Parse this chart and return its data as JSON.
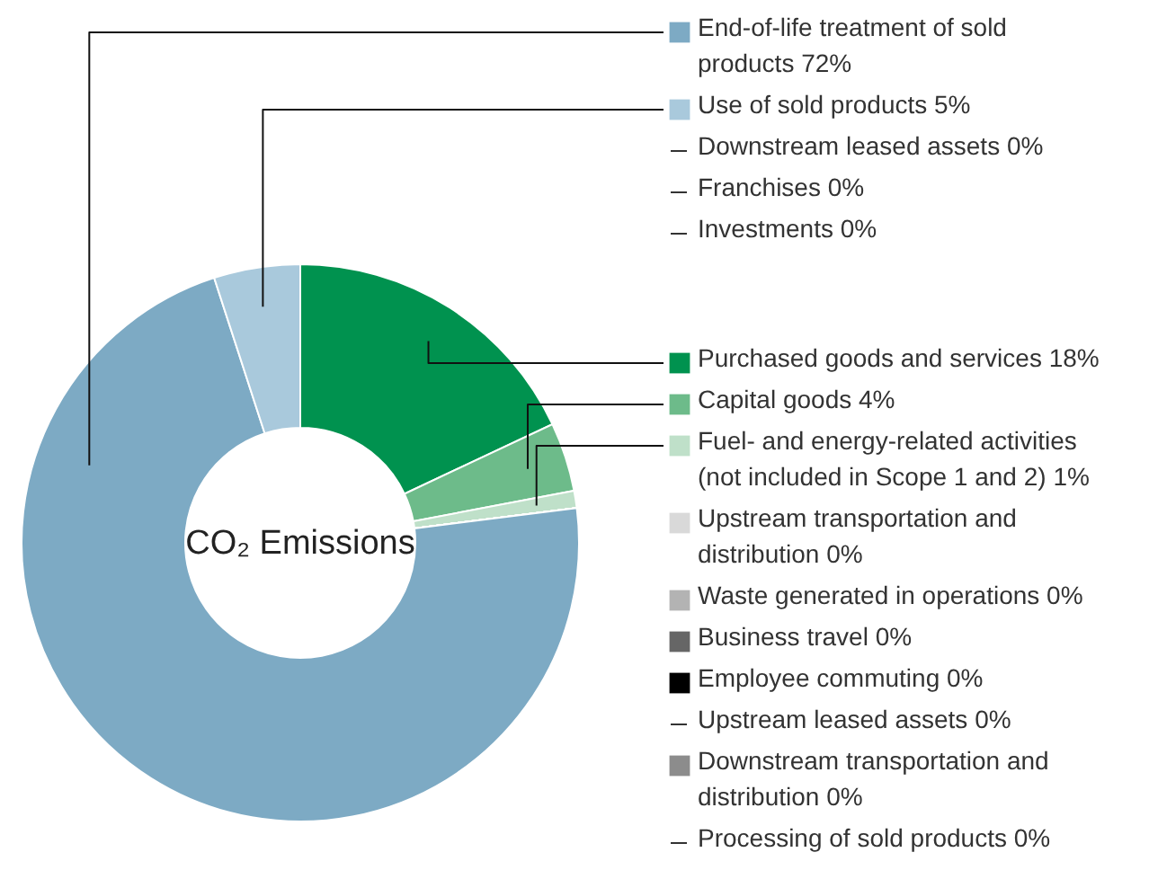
{
  "chart_data": {
    "type": "donut",
    "title": "CO₂ Emissions",
    "legend": "right",
    "categories": [
      "Purchased goods and services",
      "Capital goods",
      "Fuel- and energy-related activities (not included in Scope 1 and 2)",
      "Upstream transportation and distribution",
      "Waste generated in operations",
      "Business travel",
      "Employee commuting",
      "Upstream leased assets",
      "Downstream transportation and distribution",
      "Processing of sold products",
      "End-of-life treatment of sold products",
      "Use of sold products",
      "Downstream leased assets",
      "Franchises",
      "Investments"
    ],
    "values": [
      18,
      4,
      1,
      0,
      0,
      0,
      0,
      0,
      0,
      0,
      72,
      5,
      0,
      0,
      0
    ],
    "value_labels": [
      "18%",
      "4%",
      "1%",
      "0%",
      "0%",
      "0%",
      "0%",
      "0%",
      "0%",
      "0%",
      "72%",
      "5%",
      "0%",
      "0%",
      "0%"
    ],
    "colors": [
      "#00924f",
      "#6dbb8a",
      "#bfe0c9",
      "#d9d9d9",
      "#b3b3b3",
      "#666666",
      "#000000",
      null,
      "#8c8c8c",
      null,
      "#7daac4",
      "#a9c9dc",
      null,
      null,
      null
    ]
  }
}
